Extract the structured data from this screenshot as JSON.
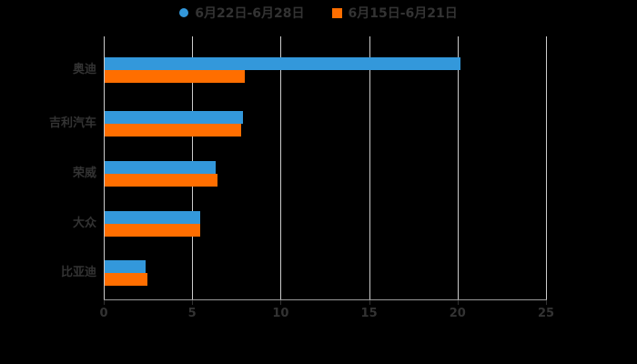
{
  "legend": {
    "items": [
      {
        "label": "6月22日-6月28日",
        "marker": "circle-icon",
        "color": "#3398db"
      },
      {
        "label": "6月15日-6月21日",
        "marker": "square-icon",
        "color": "#ff6e00"
      }
    ]
  },
  "chart_data": {
    "type": "bar",
    "orientation": "horizontal",
    "title": "",
    "xlabel": "",
    "ylabel": "",
    "categories": [
      "奥迪",
      "吉利汽车",
      "荣威",
      "大众",
      "比亚迪"
    ],
    "series": [
      {
        "name": "6月22日-6月28日",
        "color": "#3398db",
        "values": [
          20.1,
          7.8,
          6.3,
          5.4,
          2.3
        ]
      },
      {
        "name": "6月15日-6月21日",
        "color": "#ff6e00",
        "values": [
          7.9,
          7.7,
          6.4,
          5.4,
          2.4
        ]
      }
    ],
    "xlim": [
      0,
      25
    ],
    "x_ticks": [
      "0",
      "5",
      "10",
      "15",
      "20",
      "25"
    ],
    "grid": true,
    "legend_position": "top",
    "background_color": "#000000",
    "grid_color": "#cccccc",
    "axis_color": "#999999",
    "text_color": "#333333"
  }
}
